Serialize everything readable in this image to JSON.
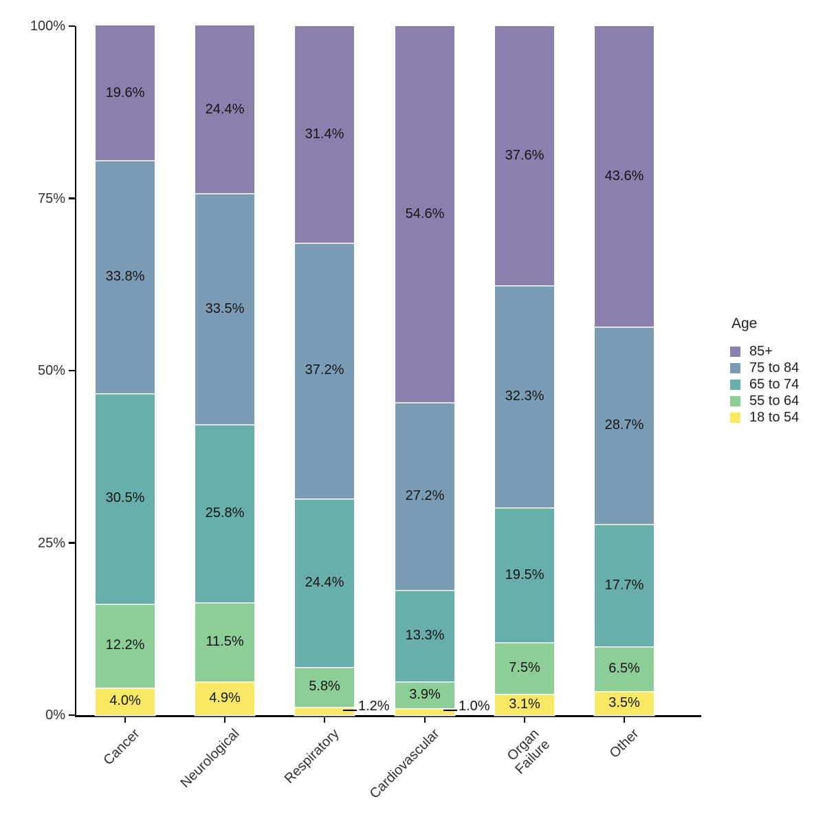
{
  "page": {
    "background": "#ffffff"
  },
  "chart_data": {
    "type": "bar",
    "stacked": true,
    "percent": true,
    "title": "",
    "xlabel": "",
    "ylabel": "",
    "ylim": [
      0,
      100
    ],
    "grid": false,
    "categories": [
      "Cancer",
      "Neurological",
      "Respiratory",
      "Cardiovascular",
      "Organ\nFailure",
      "Other"
    ],
    "y_ticks": [
      {
        "value": 0,
        "label": "0%"
      },
      {
        "value": 25,
        "label": "25%"
      },
      {
        "value": 50,
        "label": "50%"
      },
      {
        "value": 75,
        "label": "75%"
      },
      {
        "value": 100,
        "label": "100%"
      }
    ],
    "outside_label_threshold": 2,
    "series": [
      {
        "name": "18 to 54",
        "color": "#f8e864",
        "values": [
          4.0,
          4.9,
          1.2,
          1.0,
          3.1,
          3.5
        ],
        "labels": [
          "4.0%",
          "4.9%",
          "1.2%",
          "1.0%",
          "3.1%",
          "3.5%"
        ]
      },
      {
        "name": "55 to 64",
        "color": "#8dce98",
        "values": [
          12.2,
          11.5,
          5.8,
          3.9,
          7.5,
          6.5
        ],
        "labels": [
          "12.2%",
          "11.5%",
          "5.8%",
          "3.9%",
          "7.5%",
          "6.5%"
        ]
      },
      {
        "name": "65 to 74",
        "color": "#68aeaa",
        "values": [
          30.5,
          25.8,
          24.4,
          13.3,
          19.5,
          17.7
        ],
        "labels": [
          "30.5%",
          "25.8%",
          "24.4%",
          "13.3%",
          "19.5%",
          "17.7%"
        ]
      },
      {
        "name": "75 to 84",
        "color": "#7a9cb5",
        "values": [
          33.8,
          33.5,
          37.2,
          27.2,
          32.3,
          28.7
        ],
        "labels": [
          "33.8%",
          "33.5%",
          "37.2%",
          "27.2%",
          "32.3%",
          "28.7%"
        ]
      },
      {
        "name": "85+",
        "color": "#8b7fae",
        "values": [
          19.6,
          24.4,
          31.4,
          54.6,
          37.6,
          43.6
        ],
        "labels": [
          "19.6%",
          "24.4%",
          "31.4%",
          "54.6%",
          "37.6%",
          "43.6%"
        ]
      }
    ],
    "legend": {
      "title": "Age",
      "position": "right",
      "entries": [
        {
          "label": "85+",
          "color": "#8b7fae"
        },
        {
          "label": "75 to 84",
          "color": "#7a9cb5"
        },
        {
          "label": "65 to 74",
          "color": "#68aeaa"
        },
        {
          "label": "55 to 64",
          "color": "#8dce98"
        },
        {
          "label": "18 to 54",
          "color": "#f8e864"
        }
      ]
    },
    "colors": {
      "axis": "#000000",
      "tick_label": "#303030",
      "bar_label": "#141414"
    }
  }
}
